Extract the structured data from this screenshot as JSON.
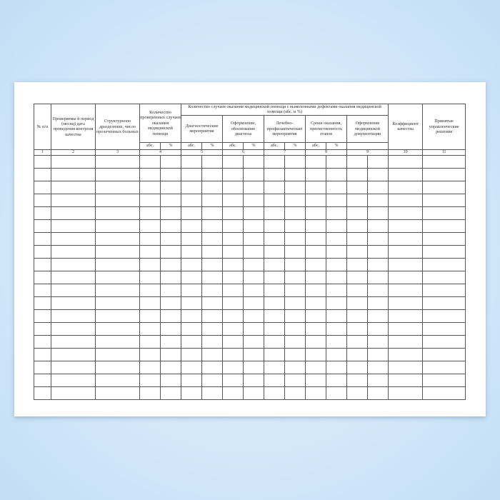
{
  "headers": {
    "c1": "№ п/п",
    "c2": "Проверяемы й период (месяц) дата проведения контроля качества",
    "c3": "Структурнопо дразделение, число пролеченных больных",
    "c4": "Количество проверенных случаев оказания медицинской помощи",
    "group": "Количество случаев оказания медицинской помощи с выявленными дефектами оказания медицинской помощи (абс. и %)",
    "c5": "Диагностические мероприятия",
    "c6": "Оформление, обоснование диагноза",
    "c7": "Лечебно-профилактические мероприятия",
    "c8": "Сроки оказания, преемственность этапов",
    "c9": "Оформление медицинской документации",
    "c10": "Коэффициент качества",
    "c11": "Принятые управленческие решения",
    "abs": "абс.",
    "pct": "%"
  },
  "numbers": [
    "1",
    "2",
    "3",
    "4",
    "5",
    "6",
    "7",
    "8",
    "9",
    "10",
    "11"
  ],
  "data_rows": 19
}
